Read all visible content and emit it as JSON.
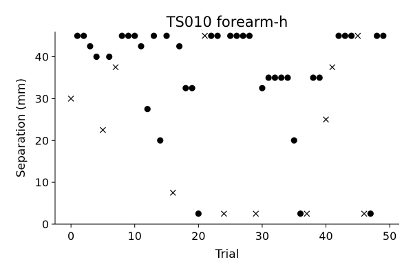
{
  "chart_data": {
    "type": "scatter",
    "title": "TS010 forearm-h",
    "xlabel": "Trial",
    "ylabel": "Separation (mm)",
    "xlim": [
      -2.5,
      51.5
    ],
    "ylim": [
      0,
      46
    ],
    "xticks": [
      0,
      10,
      20,
      30,
      40,
      50
    ],
    "yticks": [
      0,
      10,
      20,
      30,
      40
    ],
    "grid": false,
    "legend": "none",
    "marker_colors": {
      "dot": "#000000",
      "cross": "#000000"
    },
    "series": [
      {
        "marker": "dot",
        "points": [
          [
            1,
            45
          ],
          [
            2,
            45
          ],
          [
            3,
            42.5
          ],
          [
            4,
            40
          ],
          [
            6,
            40
          ],
          [
            8,
            45
          ],
          [
            9,
            45
          ],
          [
            10,
            45
          ],
          [
            11,
            42.5
          ],
          [
            12,
            27.5
          ],
          [
            13,
            45
          ],
          [
            14,
            20
          ],
          [
            15,
            45
          ],
          [
            17,
            42.5
          ],
          [
            18,
            32.5
          ],
          [
            19,
            32.5
          ],
          [
            20,
            2.5
          ],
          [
            22,
            45
          ],
          [
            23,
            45
          ],
          [
            25,
            45
          ],
          [
            26,
            45
          ],
          [
            27,
            45
          ],
          [
            28,
            45
          ],
          [
            30,
            32.5
          ],
          [
            31,
            35
          ],
          [
            32,
            35
          ],
          [
            33,
            35
          ],
          [
            34,
            35
          ],
          [
            35,
            20
          ],
          [
            36,
            2.5
          ],
          [
            38,
            35
          ],
          [
            39,
            35
          ],
          [
            42,
            45
          ],
          [
            43,
            45
          ],
          [
            44,
            45
          ],
          [
            47,
            2.5
          ],
          [
            48,
            45
          ],
          [
            49,
            45
          ]
        ]
      },
      {
        "marker": "cross",
        "points": [
          [
            0,
            30
          ],
          [
            5,
            22.5
          ],
          [
            7,
            37.5
          ],
          [
            16,
            7.5
          ],
          [
            21,
            45
          ],
          [
            24,
            2.5
          ],
          [
            29,
            2.5
          ],
          [
            37,
            2.5
          ],
          [
            40,
            25
          ],
          [
            41,
            37.5
          ],
          [
            45,
            45
          ],
          [
            46,
            2.5
          ]
        ]
      }
    ]
  }
}
